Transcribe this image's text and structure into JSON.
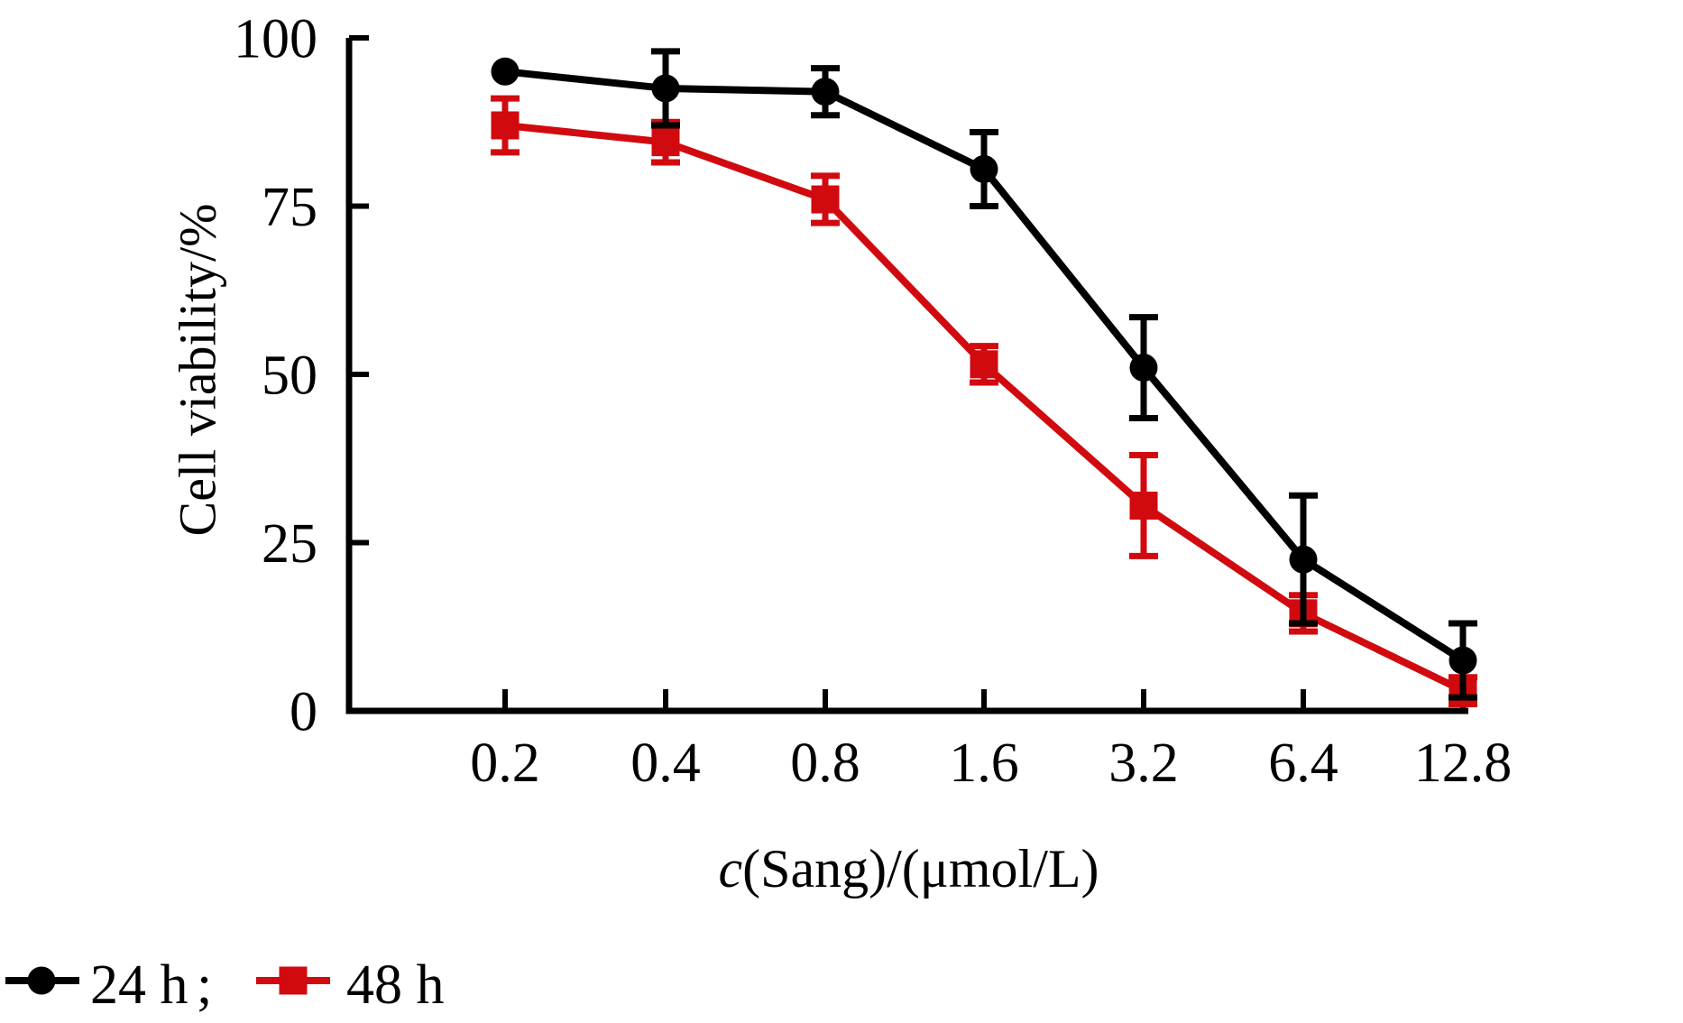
{
  "page": {
    "background": "#ffffff"
  },
  "chart_data": {
    "type": "line",
    "title": "",
    "xlabel_italic": "c",
    "xlabel_rest": "(Sang)/(μmol/L)",
    "ylabel": "Cell viability/%",
    "x_scale": "log2-categorical",
    "categories": [
      0.2,
      0.4,
      0.8,
      1.6,
      3.2,
      6.4,
      12.8
    ],
    "x_tick_labels": [
      "0.2",
      "0.4",
      "0.8",
      "1.6",
      "3.2",
      "6.4",
      "12.8"
    ],
    "y_ticks": [
      0,
      25,
      50,
      75,
      100
    ],
    "ylim": [
      0,
      100
    ],
    "grid": false,
    "error_bars": true,
    "legend_position": "bottom-left",
    "series": [
      {
        "name": "24 h",
        "color": "#000000",
        "marker": "circle",
        "values": [
          95,
          92.5,
          92,
          80.5,
          51,
          22.5,
          7.5
        ],
        "errors": [
          0,
          5.5,
          3.5,
          5.5,
          7.5,
          9.5,
          5.5
        ]
      },
      {
        "name": "48 h",
        "color": "#d10a10",
        "marker": "square",
        "values": [
          87,
          84.5,
          76,
          51.5,
          30.5,
          14.5,
          3
        ],
        "errors": [
          4,
          3,
          3.5,
          2.7,
          7.5,
          2.7,
          2
        ]
      }
    ]
  },
  "legend": {
    "separator": ";"
  }
}
